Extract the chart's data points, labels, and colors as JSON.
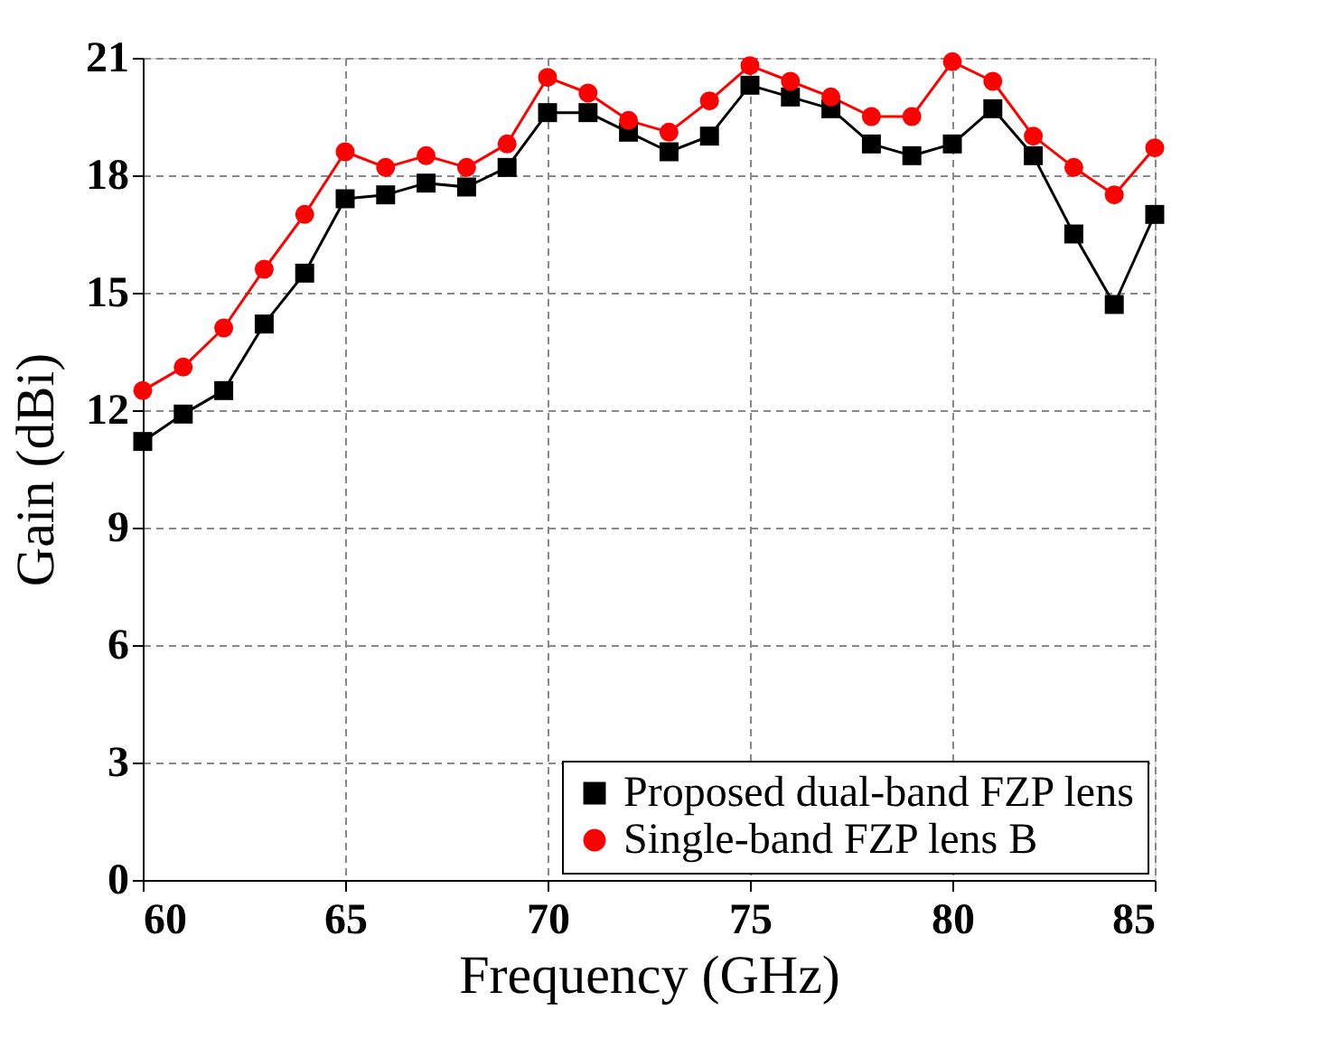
{
  "chart_data": {
    "type": "line",
    "xlabel": "Frequency (GHz)",
    "ylabel": "Gain (dBi)",
    "x": [
      60,
      61,
      62,
      63,
      64,
      65,
      66,
      67,
      68,
      69,
      70,
      71,
      72,
      73,
      74,
      75,
      76,
      77,
      78,
      79,
      80,
      81,
      82,
      83,
      84,
      85
    ],
    "series": [
      {
        "name": "Proposed dual-band FZP lens",
        "color": "#000000",
        "marker": "square",
        "values": [
          11.2,
          11.9,
          12.5,
          14.2,
          15.5,
          17.4,
          17.5,
          17.8,
          17.7,
          18.2,
          19.6,
          19.6,
          19.1,
          18.6,
          19.0,
          20.3,
          20.0,
          19.7,
          18.8,
          18.5,
          18.8,
          19.7,
          18.5,
          16.5,
          14.7,
          17.0
        ]
      },
      {
        "name": "Single-band FZP lens B",
        "color": "#ff0000",
        "marker": "circle",
        "values": [
          12.5,
          13.1,
          14.1,
          15.6,
          17.0,
          18.6,
          18.2,
          18.5,
          18.2,
          18.8,
          20.5,
          20.1,
          19.4,
          19.1,
          19.9,
          20.8,
          20.4,
          20.0,
          19.5,
          19.5,
          20.9,
          20.4,
          19.0,
          18.2,
          17.5,
          18.7
        ]
      }
    ],
    "xlim": [
      60,
      85
    ],
    "xticks": [
      60,
      65,
      70,
      75,
      80,
      85
    ],
    "ylim": [
      0,
      21
    ],
    "yticks": [
      0,
      3,
      6,
      9,
      12,
      15,
      18,
      21
    ],
    "grid": true,
    "legend": "bottom right",
    "line_style": "solid"
  }
}
